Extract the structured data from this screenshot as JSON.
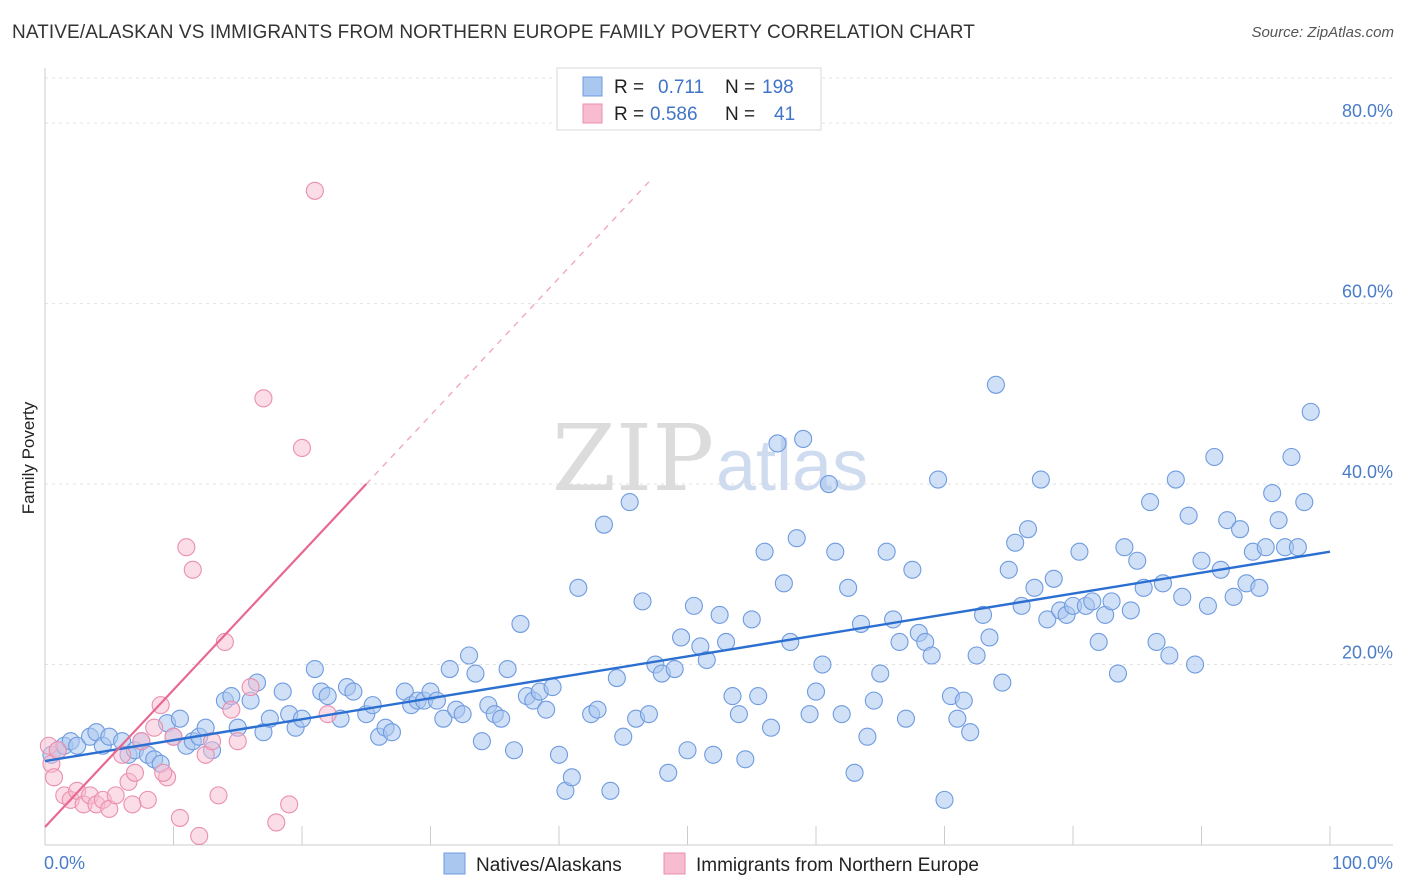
{
  "header": {
    "title": "NATIVE/ALASKAN VS IMMIGRANTS FROM NORTHERN EUROPE FAMILY POVERTY CORRELATION CHART",
    "source": "Source: ZipAtlas.com"
  },
  "watermark": {
    "zip": "ZIP",
    "atlas": "atlas"
  },
  "colors": {
    "blue_fill": "#a9c7ef",
    "blue_stroke": "#6f9be0",
    "blue_line": "#2b6fd1",
    "pink_fill": "#f7bcd0",
    "pink_stroke": "#ea8fae",
    "pink_line": "#e8698f",
    "grid": "#e2e2e2",
    "tick_text": "#4a7cc9"
  },
  "legend": {
    "rows": [
      {
        "r_label": "R =",
        "r_value": "0.711",
        "n_label": "N =",
        "n_value": "198"
      },
      {
        "r_label": "R =",
        "r_value": "0.586",
        "n_label": "N =",
        "n_value": "41"
      }
    ]
  },
  "chart_data": {
    "type": "scatter",
    "title": "NATIVE/ALASKAN VS IMMIGRANTS FROM NORTHERN EUROPE FAMILY POVERTY CORRELATION CHART",
    "xlabel": "",
    "ylabel": "Family Poverty",
    "xlim": [
      0,
      100
    ],
    "ylim": [
      0,
      85
    ],
    "x_tick_labels": [
      "0.0%",
      "100.0%"
    ],
    "y_ticks": [
      {
        "value": 20,
        "label": "20.0%"
      },
      {
        "value": 40,
        "label": "40.0%"
      },
      {
        "value": 60,
        "label": "60.0%"
      },
      {
        "value": 80,
        "label": "80.0%"
      }
    ],
    "grid": true,
    "legend_position": "top-center",
    "series": [
      {
        "name": "Natives/Alaskans",
        "r": 0.711,
        "n": 198,
        "trend": {
          "x": [
            0,
            100
          ],
          "y": [
            9.3,
            32.5
          ]
        },
        "points": [
          [
            0.5,
            10
          ],
          [
            1,
            10.5
          ],
          [
            1.5,
            11
          ],
          [
            2,
            11.5
          ],
          [
            2.5,
            11
          ],
          [
            3.5,
            12
          ],
          [
            4,
            12.5
          ],
          [
            4.5,
            11
          ],
          [
            5,
            12
          ],
          [
            6,
            11.5
          ],
          [
            6.5,
            10
          ],
          [
            7,
            10.5
          ],
          [
            7.5,
            11.5
          ],
          [
            8,
            10
          ],
          [
            8.5,
            9.5
          ],
          [
            9,
            9
          ],
          [
            9.5,
            13.5
          ],
          [
            10,
            12
          ],
          [
            10.5,
            14
          ],
          [
            11,
            11
          ],
          [
            11.5,
            11.5
          ],
          [
            12,
            12
          ],
          [
            12.5,
            13
          ],
          [
            13,
            10.5
          ],
          [
            14,
            16
          ],
          [
            14.5,
            16.5
          ],
          [
            15,
            13
          ],
          [
            16,
            16
          ],
          [
            16.5,
            18
          ],
          [
            17,
            12.5
          ],
          [
            17.5,
            14
          ],
          [
            18.5,
            17
          ],
          [
            19,
            14.5
          ],
          [
            19.5,
            13
          ],
          [
            20,
            14
          ],
          [
            21,
            19.5
          ],
          [
            21.5,
            17
          ],
          [
            22,
            16.5
          ],
          [
            23,
            14
          ],
          [
            23.5,
            17.5
          ],
          [
            24,
            17
          ],
          [
            25,
            14.5
          ],
          [
            25.5,
            15.5
          ],
          [
            26,
            12
          ],
          [
            26.5,
            13
          ],
          [
            27,
            12.5
          ],
          [
            28,
            17
          ],
          [
            28.5,
            15.5
          ],
          [
            29,
            16
          ],
          [
            29.5,
            16
          ],
          [
            30,
            17
          ],
          [
            30.5,
            16
          ],
          [
            31,
            14
          ],
          [
            31.5,
            19.5
          ],
          [
            32,
            15
          ],
          [
            32.5,
            14.5
          ],
          [
            33,
            21
          ],
          [
            33.5,
            19
          ],
          [
            34,
            11.5
          ],
          [
            34.5,
            15.5
          ],
          [
            35,
            14.5
          ],
          [
            35.5,
            14
          ],
          [
            36,
            19.5
          ],
          [
            36.5,
            10.5
          ],
          [
            37,
            24.5
          ],
          [
            37.5,
            16.5
          ],
          [
            38,
            16
          ],
          [
            38.5,
            17
          ],
          [
            39,
            15
          ],
          [
            39.5,
            17.5
          ],
          [
            40,
            10
          ],
          [
            40.5,
            6
          ],
          [
            41,
            7.5
          ],
          [
            41.5,
            28.5
          ],
          [
            42.5,
            14.5
          ],
          [
            43,
            15
          ],
          [
            43.5,
            35.5
          ],
          [
            44,
            6
          ],
          [
            44.5,
            18.5
          ],
          [
            45,
            12
          ],
          [
            45.5,
            38
          ],
          [
            46,
            14
          ],
          [
            46.5,
            27
          ],
          [
            47,
            14.5
          ],
          [
            47.5,
            20
          ],
          [
            48,
            19
          ],
          [
            48.5,
            8
          ],
          [
            49,
            19.5
          ],
          [
            49.5,
            23
          ],
          [
            50,
            10.5
          ],
          [
            50.5,
            26.5
          ],
          [
            51,
            22
          ],
          [
            51.5,
            20.5
          ],
          [
            52,
            10
          ],
          [
            52.5,
            25.5
          ],
          [
            53,
            22.5
          ],
          [
            53.5,
            16.5
          ],
          [
            54,
            14.5
          ],
          [
            54.5,
            9.5
          ],
          [
            55,
            25
          ],
          [
            55.5,
            16.5
          ],
          [
            56,
            32.5
          ],
          [
            56.5,
            13
          ],
          [
            57,
            44.5
          ],
          [
            57.5,
            29
          ],
          [
            58,
            22.5
          ],
          [
            58.5,
            34
          ],
          [
            59,
            45
          ],
          [
            59.5,
            14.5
          ],
          [
            60,
            17
          ],
          [
            60.5,
            20
          ],
          [
            61,
            40
          ],
          [
            61.5,
            32.5
          ],
          [
            62,
            14.5
          ],
          [
            62.5,
            28.5
          ],
          [
            63,
            8
          ],
          [
            63.5,
            24.5
          ],
          [
            64,
            12
          ],
          [
            64.5,
            16
          ],
          [
            65,
            19
          ],
          [
            65.5,
            32.5
          ],
          [
            66,
            25
          ],
          [
            66.5,
            22.5
          ],
          [
            67,
            14
          ],
          [
            67.5,
            30.5
          ],
          [
            68,
            23.5
          ],
          [
            68.5,
            22.5
          ],
          [
            69,
            21
          ],
          [
            69.5,
            40.5
          ],
          [
            70,
            5
          ],
          [
            70.5,
            16.5
          ],
          [
            71,
            14
          ],
          [
            71.5,
            16
          ],
          [
            72,
            12.5
          ],
          [
            72.5,
            21
          ],
          [
            73,
            25.5
          ],
          [
            73.5,
            23
          ],
          [
            74,
            51
          ],
          [
            74.5,
            18
          ],
          [
            75,
            30.5
          ],
          [
            75.5,
            33.5
          ],
          [
            76,
            26.5
          ],
          [
            76.5,
            35
          ],
          [
            77,
            28.5
          ],
          [
            77.5,
            40.5
          ],
          [
            78,
            25
          ],
          [
            78.5,
            29.5
          ],
          [
            79,
            26
          ],
          [
            79.5,
            25.5
          ],
          [
            80,
            26.5
          ],
          [
            80.5,
            32.5
          ],
          [
            81,
            26.5
          ],
          [
            81.5,
            27
          ],
          [
            82,
            22.5
          ],
          [
            82.5,
            25.5
          ],
          [
            83,
            27
          ],
          [
            83.5,
            19
          ],
          [
            84,
            33
          ],
          [
            84.5,
            26
          ],
          [
            85,
            31.5
          ],
          [
            85.5,
            28.5
          ],
          [
            86,
            38
          ],
          [
            86.5,
            22.5
          ],
          [
            87,
            29
          ],
          [
            87.5,
            21
          ],
          [
            88,
            40.5
          ],
          [
            88.5,
            27.5
          ],
          [
            89,
            36.5
          ],
          [
            89.5,
            20
          ],
          [
            90,
            31.5
          ],
          [
            90.5,
            26.5
          ],
          [
            91,
            43
          ],
          [
            91.5,
            30.5
          ],
          [
            92,
            36
          ],
          [
            92.5,
            27.5
          ],
          [
            93,
            35
          ],
          [
            93.5,
            29
          ],
          [
            94,
            32.5
          ],
          [
            94.5,
            28.5
          ],
          [
            95,
            33
          ],
          [
            95.5,
            39
          ],
          [
            96,
            36
          ],
          [
            96.5,
            33
          ],
          [
            97,
            43
          ],
          [
            97.5,
            33
          ],
          [
            98,
            38
          ],
          [
            98.5,
            48
          ]
        ]
      },
      {
        "name": "Immigrants from Northern Europe",
        "r": 0.586,
        "n": 41,
        "trend": {
          "x": [
            0,
            25
          ],
          "y": [
            2,
            40
          ]
        },
        "trend_dashed": {
          "x": [
            25,
            47
          ],
          "y": [
            40,
            73.5
          ]
        },
        "points": [
          [
            0.3,
            11
          ],
          [
            0.5,
            9
          ],
          [
            0.7,
            7.5
          ],
          [
            1,
            10.5
          ],
          [
            1.5,
            5.5
          ],
          [
            2,
            5
          ],
          [
            2.5,
            6
          ],
          [
            3,
            4.5
          ],
          [
            3.5,
            5.5
          ],
          [
            4,
            4.5
          ],
          [
            4.5,
            5
          ],
          [
            5,
            4
          ],
          [
            5.5,
            5.5
          ],
          [
            6,
            10
          ],
          [
            6.5,
            7
          ],
          [
            7,
            8
          ],
          [
            7.5,
            11.5
          ],
          [
            8,
            5
          ],
          [
            8.5,
            13
          ],
          [
            9,
            15.5
          ],
          [
            9.5,
            7.5
          ],
          [
            10,
            12
          ],
          [
            10.5,
            3
          ],
          [
            11,
            33
          ],
          [
            11.5,
            30.5
          ],
          [
            12,
            1
          ],
          [
            12.5,
            10
          ],
          [
            13,
            11.5
          ],
          [
            13.5,
            5.5
          ],
          [
            14,
            22.5
          ],
          [
            14.5,
            15
          ],
          [
            15,
            11.5
          ],
          [
            16,
            17.5
          ],
          [
            17,
            49.5
          ],
          [
            18,
            2.5
          ],
          [
            19,
            4.5
          ],
          [
            20,
            44
          ],
          [
            21,
            72.5
          ],
          [
            22,
            14.5
          ],
          [
            6.8,
            4.5
          ],
          [
            9.2,
            8
          ]
        ]
      }
    ]
  },
  "bottom_legend": {
    "items": [
      {
        "label": "Natives/Alaskans"
      },
      {
        "label": "Immigrants from Northern Europe"
      }
    ]
  }
}
